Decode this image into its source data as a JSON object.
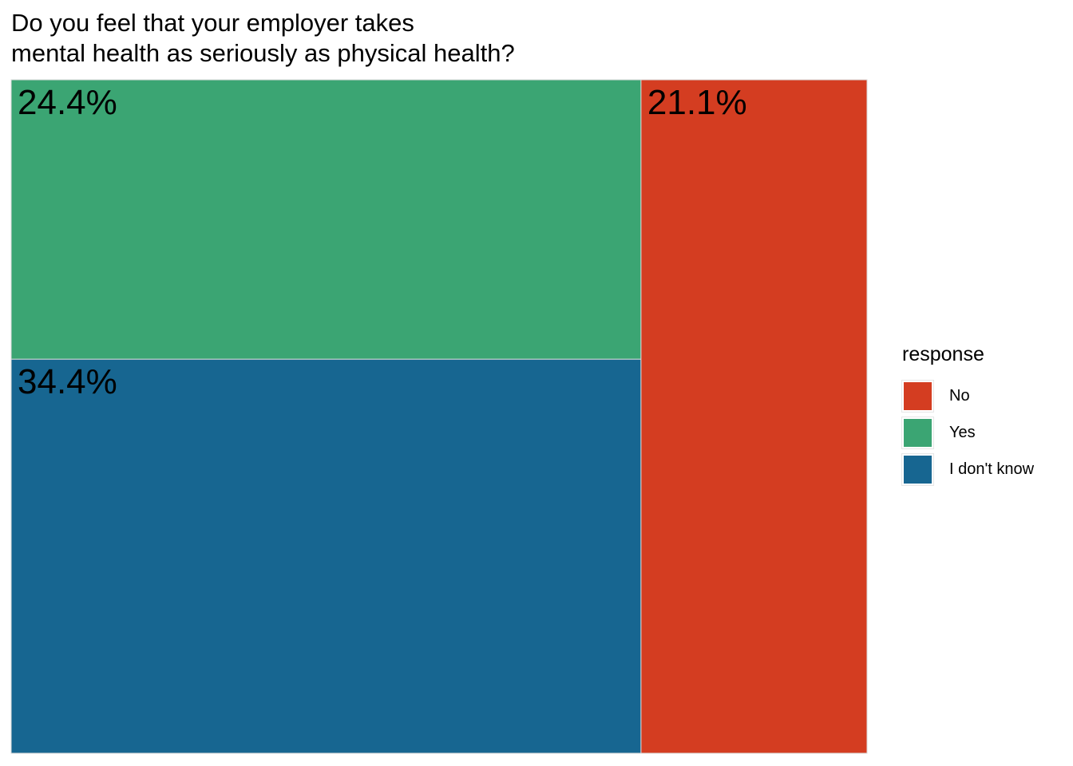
{
  "chart_data": {
    "type": "treemap",
    "title_lines": [
      "Do you feel that your employer takes",
      "mental health as seriously as physical health?"
    ],
    "tiles": [
      {
        "response": "I don't know",
        "value": 34.4,
        "label": "34.4%",
        "color": "#176691"
      },
      {
        "response": "Yes",
        "value": 24.4,
        "label": "24.4%",
        "color": "#3ba573"
      },
      {
        "response": "No",
        "value": 21.1,
        "label": "21.1%",
        "color": "#d43d21"
      }
    ],
    "legend": {
      "title": "response",
      "placement": "right",
      "items": [
        {
          "label": "No",
          "color": "#d43d21"
        },
        {
          "label": "Yes",
          "color": "#3ba573"
        },
        {
          "label": "I don't know",
          "color": "#176691"
        }
      ]
    }
  }
}
